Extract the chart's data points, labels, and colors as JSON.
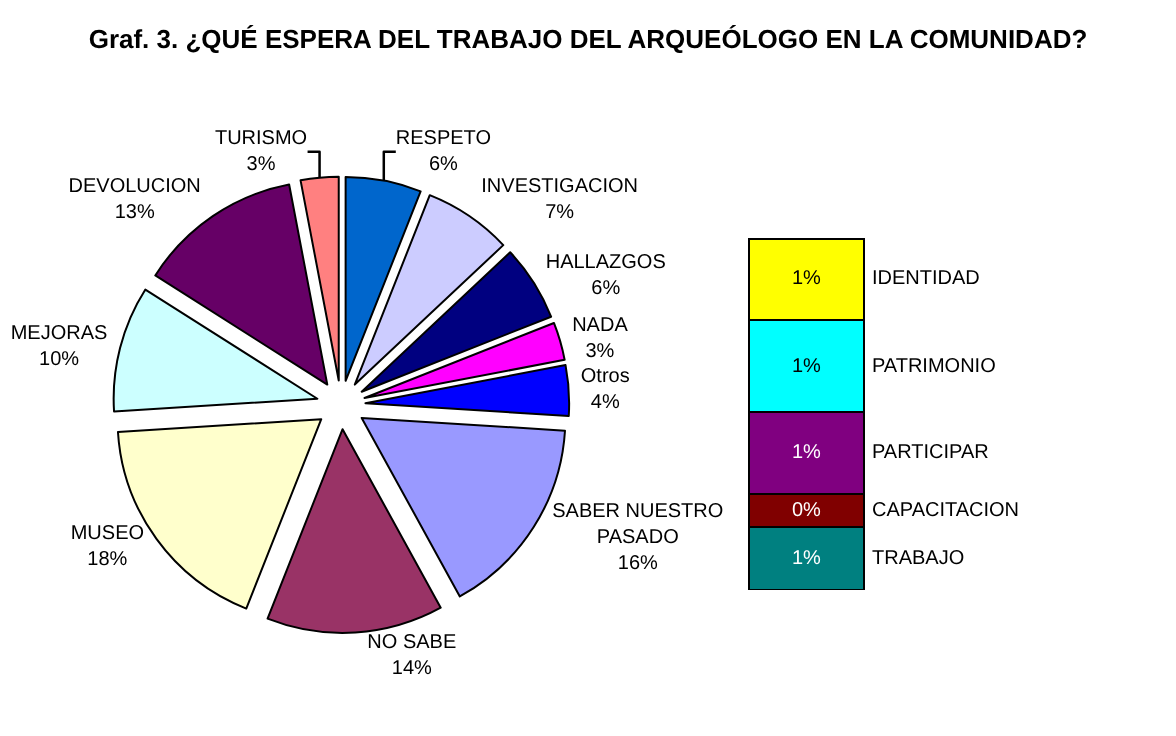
{
  "chart_data": [
    {
      "type": "pie",
      "title": "Graf. 3. ¿QUÉ ESPERA DEL TRABAJO DEL ARQUEÓLOGO EN LA COMUNIDAD?",
      "categories": [
        "RESPETO",
        "INVESTIGACION",
        "HALLAZGOS",
        "NADA",
        "Otros",
        "SABER NUESTRO PASADO",
        "NO SABE",
        "MUSEO",
        "MEJORAS",
        "DEVOLUCION",
        "TURISMO"
      ],
      "values": [
        6,
        7,
        6,
        3,
        4,
        16,
        14,
        18,
        10,
        13,
        3
      ],
      "value_labels": [
        "6%",
        "7%",
        "6%",
        "3%",
        "4%",
        "16%",
        "14%",
        "18%",
        "10%",
        "13%",
        "3%"
      ],
      "colors": [
        "#0066cc",
        "#ccccff",
        "#000080",
        "#ff00ff",
        "#0000ff",
        "#9999ff",
        "#993366",
        "#ffffcc",
        "#ccffff",
        "#660066",
        "#ff8080"
      ]
    },
    {
      "type": "bar",
      "stacked": true,
      "categories": [
        null
      ],
      "series": [
        {
          "name": "TRABAJO",
          "color": "#008080",
          "values": [
            0.71
          ],
          "value_labels": [
            "1%"
          ]
        },
        {
          "name": "CAPACITACION",
          "color": "#800000",
          "values": [
            0.38
          ],
          "value_labels": [
            "0%"
          ]
        },
        {
          "name": "PARTICIPAR",
          "color": "#800080",
          "values": [
            0.93
          ],
          "value_labels": [
            "1%"
          ]
        },
        {
          "name": "PATRIMONIO",
          "color": "#00ffff",
          "values": [
            1.04
          ],
          "value_labels": [
            "1%"
          ]
        },
        {
          "name": "IDENTIDAD",
          "color": "#ffff00",
          "values": [
            0.93
          ],
          "value_labels": [
            "1%"
          ]
        }
      ]
    }
  ]
}
